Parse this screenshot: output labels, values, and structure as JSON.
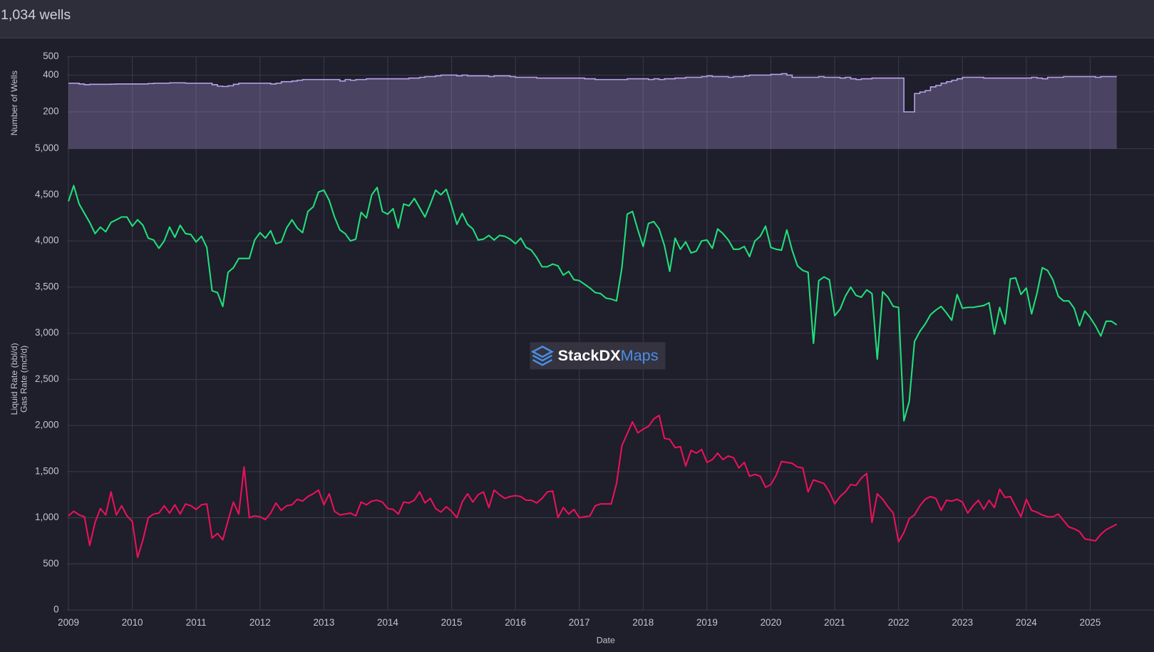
{
  "header": {
    "title": "1,034 wells"
  },
  "watermark": {
    "brand": "StackDX",
    "product": "Maps"
  },
  "chart_data": {
    "type": "line",
    "xlabel": "Date",
    "ylabel": [
      "Liquid Rate (bbl/d)",
      "Gas Rate (mcf/d)"
    ],
    "y2label": "Number of Wells",
    "grid": true,
    "xlim": [
      "2009",
      "2026"
    ],
    "xticks": [
      "2009",
      "2010",
      "2011",
      "2012",
      "2013",
      "2014",
      "2015",
      "2016",
      "2017",
      "2018",
      "2019",
      "2020",
      "2021",
      "2022",
      "2023",
      "2024",
      "2025"
    ],
    "ylim": [
      0,
      5000
    ],
    "yticks": [
      0,
      500,
      {
        "value": 1000,
        "label": "1,000"
      },
      {
        "value": 1500,
        "label": "1,500"
      },
      {
        "value": 2000,
        "label": "2,000"
      },
      {
        "value": 2500,
        "label": "2,500"
      },
      {
        "value": 3000,
        "label": "3,000"
      },
      {
        "value": 3500,
        "label": "3,500"
      },
      {
        "value": 4000,
        "label": "4,000"
      },
      {
        "value": 4500,
        "label": "4,500"
      },
      {
        "value": 5000,
        "label": "5,000"
      }
    ],
    "y2lim": [
      0,
      500
    ],
    "y2ticks": [
      200,
      400,
      500
    ],
    "x": [
      "2009-01",
      "2009-02",
      "2009-03",
      "2009-04",
      "2009-05",
      "2009-06",
      "2009-07",
      "2009-08",
      "2009-09",
      "2009-10",
      "2009-11",
      "2009-12",
      "2010-01",
      "2010-02",
      "2010-03",
      "2010-04",
      "2010-05",
      "2010-06",
      "2010-07",
      "2010-08",
      "2010-09",
      "2010-10",
      "2010-11",
      "2010-12",
      "2011-01",
      "2011-02",
      "2011-03",
      "2011-04",
      "2011-05",
      "2011-06",
      "2011-07",
      "2011-08",
      "2011-09",
      "2011-10",
      "2011-11",
      "2011-12",
      "2012-01",
      "2012-02",
      "2012-03",
      "2012-04",
      "2012-05",
      "2012-06",
      "2012-07",
      "2012-08",
      "2012-09",
      "2012-10",
      "2012-11",
      "2012-12",
      "2013-01",
      "2013-02",
      "2013-03",
      "2013-04",
      "2013-05",
      "2013-06",
      "2013-07",
      "2013-08",
      "2013-09",
      "2013-10",
      "2013-11",
      "2013-12",
      "2014-01",
      "2014-02",
      "2014-03",
      "2014-04",
      "2014-05",
      "2014-06",
      "2014-07",
      "2014-08",
      "2014-09",
      "2014-10",
      "2014-11",
      "2014-12",
      "2015-01",
      "2015-02",
      "2015-03",
      "2015-04",
      "2015-05",
      "2015-06",
      "2015-07",
      "2015-08",
      "2015-09",
      "2015-10",
      "2015-11",
      "2015-12",
      "2016-01",
      "2016-02",
      "2016-03",
      "2016-04",
      "2016-05",
      "2016-06",
      "2016-07",
      "2016-08",
      "2016-09",
      "2016-10",
      "2016-11",
      "2016-12",
      "2017-01",
      "2017-02",
      "2017-03",
      "2017-04",
      "2017-05",
      "2017-06",
      "2017-07",
      "2017-08",
      "2017-09",
      "2017-10",
      "2017-11",
      "2017-12",
      "2018-01",
      "2018-02",
      "2018-03",
      "2018-04",
      "2018-05",
      "2018-06",
      "2018-07",
      "2018-08",
      "2018-09",
      "2018-10",
      "2018-11",
      "2018-12",
      "2019-01",
      "2019-02",
      "2019-03",
      "2019-04",
      "2019-05",
      "2019-06",
      "2019-07",
      "2019-08",
      "2019-09",
      "2019-10",
      "2019-11",
      "2019-12",
      "2020-01",
      "2020-02",
      "2020-03",
      "2020-04",
      "2020-05",
      "2020-06",
      "2020-07",
      "2020-08",
      "2020-09",
      "2020-10",
      "2020-11",
      "2020-12",
      "2021-01",
      "2021-02",
      "2021-03",
      "2021-04",
      "2021-05",
      "2021-06",
      "2021-07",
      "2021-08",
      "2021-09",
      "2021-10",
      "2021-11",
      "2021-12",
      "2022-01",
      "2022-02",
      "2022-03",
      "2022-04",
      "2022-05",
      "2022-06",
      "2022-07",
      "2022-08",
      "2022-09",
      "2022-10",
      "2022-11",
      "2022-12",
      "2023-01",
      "2023-02",
      "2023-03",
      "2023-04",
      "2023-05",
      "2023-06",
      "2023-07",
      "2023-08",
      "2023-09",
      "2023-10",
      "2023-11",
      "2023-12",
      "2024-01",
      "2024-02",
      "2024-03",
      "2024-04",
      "2024-05",
      "2024-06",
      "2024-07",
      "2024-08",
      "2024-09",
      "2024-10",
      "2024-11",
      "2024-12",
      "2025-01",
      "2025-02",
      "2025-03",
      "2025-04",
      "2025-05",
      "2025-06"
    ],
    "series": [
      {
        "type": "step-area",
        "axis": "y2",
        "color": "#b9a4ec",
        "values": [
          356,
          356,
          352,
          348,
          350,
          350,
          350,
          350,
          351,
          352,
          352,
          352,
          352,
          352,
          352,
          354,
          356,
          356,
          356,
          358,
          358,
          358,
          356,
          356,
          356,
          356,
          356,
          348,
          340,
          338,
          342,
          350,
          356,
          356,
          356,
          356,
          356,
          356,
          352,
          356,
          364,
          364,
          368,
          372,
          376,
          376,
          376,
          376,
          376,
          376,
          376,
          368,
          376,
          372,
          376,
          376,
          380,
          380,
          380,
          380,
          380,
          380,
          380,
          380,
          384,
          384,
          388,
          392,
          392,
          396,
          400,
          400,
          400,
          396,
          400,
          396,
          396,
          396,
          396,
          392,
          396,
          396,
          396,
          392,
          388,
          388,
          388,
          388,
          384,
          384,
          384,
          384,
          384,
          384,
          384,
          384,
          384,
          380,
          380,
          376,
          376,
          376,
          376,
          376,
          376,
          380,
          380,
          380,
          380,
          376,
          380,
          376,
          380,
          380,
          384,
          384,
          388,
          388,
          388,
          392,
          396,
          392,
          392,
          392,
          388,
          392,
          392,
          396,
          400,
          400,
          400,
          400,
          404,
          404,
          408,
          400,
          388,
          388,
          388,
          388,
          388,
          392,
          388,
          388,
          388,
          384,
          388,
          380,
          376,
          380,
          380,
          384,
          384,
          384,
          384,
          384,
          384,
          200,
          200,
          300,
          308,
          316,
          336,
          344,
          356,
          364,
          372,
          380,
          388,
          388,
          388,
          388,
          384,
          384,
          384,
          384,
          384,
          384,
          384,
          384,
          384,
          388,
          384,
          380,
          388,
          388,
          388,
          392,
          392,
          392,
          392,
          392,
          392,
          388,
          392,
          392,
          392,
          392
        ]
      },
      {
        "color": "#20e07a",
        "values": [
          4430,
          4600,
          4400,
          4300,
          4200,
          4080,
          4150,
          4100,
          4200,
          4230,
          4260,
          4260,
          4160,
          4230,
          4170,
          4030,
          4010,
          3920,
          4000,
          4150,
          4040,
          4170,
          4080,
          4070,
          3990,
          4050,
          3930,
          3460,
          3440,
          3290,
          3660,
          3710,
          3810,
          3810,
          3810,
          4010,
          4090,
          4030,
          4110,
          3970,
          3990,
          4140,
          4230,
          4140,
          4090,
          4320,
          4370,
          4530,
          4550,
          4440,
          4260,
          4120,
          4080,
          4000,
          4020,
          4310,
          4250,
          4500,
          4580,
          4320,
          4290,
          4350,
          4140,
          4400,
          4380,
          4460,
          4360,
          4260,
          4400,
          4550,
          4500,
          4560,
          4380,
          4180,
          4300,
          4180,
          4130,
          4010,
          4020,
          4060,
          4010,
          4060,
          4050,
          4020,
          3970,
          4030,
          3930,
          3900,
          3820,
          3720,
          3720,
          3750,
          3730,
          3630,
          3670,
          3580,
          3570,
          3530,
          3490,
          3440,
          3430,
          3380,
          3370,
          3350,
          3710,
          4290,
          4320,
          4120,
          3940,
          4190,
          4210,
          4130,
          3950,
          3670,
          4030,
          3910,
          3990,
          3870,
          3890,
          4000,
          4010,
          3920,
          4130,
          4080,
          4010,
          3910,
          3910,
          3940,
          3830,
          4000,
          4050,
          4160,
          3930,
          3910,
          3900,
          4120,
          3900,
          3730,
          3680,
          3660,
          2890,
          3570,
          3610,
          3580,
          3190,
          3260,
          3400,
          3500,
          3410,
          3390,
          3470,
          3430,
          2720,
          3450,
          3390,
          3290,
          3280,
          2050,
          2260,
          2910,
          3020,
          3100,
          3200,
          3250,
          3290,
          3220,
          3140,
          3420,
          3270,
          3280,
          3280,
          3290,
          3300,
          3330,
          2990,
          3280,
          3100,
          3590,
          3600,
          3420,
          3490,
          3210,
          3430,
          3710,
          3680,
          3580,
          3400,
          3350,
          3350,
          3270,
          3080,
          3240,
          3170,
          3080,
          2970,
          3130,
          3130,
          3090
        ]
      },
      {
        "color": "#ea1259",
        "values": [
          1020,
          1070,
          1030,
          1010,
          700,
          950,
          1100,
          1030,
          1280,
          1030,
          1130,
          1020,
          960,
          570,
          760,
          1000,
          1040,
          1050,
          1130,
          1050,
          1140,
          1040,
          1150,
          1130,
          1090,
          1140,
          1150,
          780,
          830,
          760,
          970,
          1170,
          1040,
          1550,
          1000,
          1020,
          1010,
          980,
          1050,
          1160,
          1080,
          1130,
          1140,
          1200,
          1180,
          1230,
          1260,
          1300,
          1140,
          1260,
          1070,
          1030,
          1040,
          1050,
          1020,
          1170,
          1140,
          1180,
          1190,
          1170,
          1100,
          1090,
          1040,
          1170,
          1160,
          1190,
          1280,
          1160,
          1210,
          1100,
          1060,
          1120,
          1070,
          1000,
          1170,
          1260,
          1170,
          1250,
          1280,
          1110,
          1300,
          1250,
          1210,
          1230,
          1240,
          1230,
          1190,
          1190,
          1160,
          1210,
          1280,
          1290,
          1000,
          1110,
          1040,
          1090,
          1000,
          1010,
          1020,
          1130,
          1150,
          1150,
          1150,
          1370,
          1780,
          1910,
          2040,
          1920,
          1960,
          1990,
          2070,
          2110,
          1860,
          1850,
          1760,
          1770,
          1560,
          1730,
          1700,
          1740,
          1600,
          1630,
          1700,
          1630,
          1670,
          1650,
          1540,
          1600,
          1450,
          1470,
          1450,
          1330,
          1360,
          1460,
          1610,
          1600,
          1590,
          1550,
          1540,
          1280,
          1410,
          1390,
          1370,
          1280,
          1150,
          1230,
          1280,
          1360,
          1350,
          1430,
          1480,
          950,
          1260,
          1200,
          1120,
          1050,
          740,
          840,
          990,
          1030,
          1130,
          1200,
          1230,
          1210,
          1080,
          1190,
          1180,
          1200,
          1170,
          1050,
          1130,
          1190,
          1090,
          1190,
          1110,
          1310,
          1220,
          1230,
          1120,
          1010,
          1200,
          1080,
          1060,
          1030,
          1010,
          1010,
          1040,
          970,
          900,
          880,
          850,
          770,
          760,
          750,
          820,
          870,
          900,
          930
        ]
      }
    ]
  }
}
